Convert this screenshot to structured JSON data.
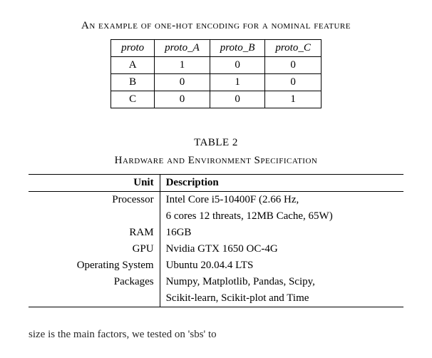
{
  "top_caption": "An example of one-hot encoding for a nominal feature",
  "table1": {
    "headers": [
      "proto",
      "proto_A",
      "proto_B",
      "proto_C"
    ],
    "rows": [
      [
        "A",
        "1",
        "0",
        "0"
      ],
      [
        "B",
        "0",
        "1",
        "0"
      ],
      [
        "C",
        "0",
        "0",
        "1"
      ]
    ]
  },
  "table2_label": "TABLE 2",
  "table2_caption": "Hardware and Environment Specification",
  "table2": {
    "col_headers": [
      "Unit",
      "Description"
    ],
    "rows": [
      {
        "unit": "Processor",
        "desc_l1": "Intel Core i5-10400F (2.66 Hz,",
        "desc_l2": "6 cores 12 threats, 12MB Cache, 65W)"
      },
      {
        "unit": "RAM",
        "desc_l1": "16GB",
        "desc_l2": ""
      },
      {
        "unit": "GPU",
        "desc_l1": "Nvidia GTX 1650 OC-4G",
        "desc_l2": ""
      },
      {
        "unit": "Operating System",
        "desc_l1": "Ubuntu 20.04.4 LTS",
        "desc_l2": ""
      },
      {
        "unit": "Packages",
        "desc_l1": "Numpy, Matplotlib, Pandas, Scipy,",
        "desc_l2": "Scikit-learn, Scikit-plot and Time"
      }
    ]
  },
  "trailing_text": "size is the main factors, we tested on 'sbs' to"
}
